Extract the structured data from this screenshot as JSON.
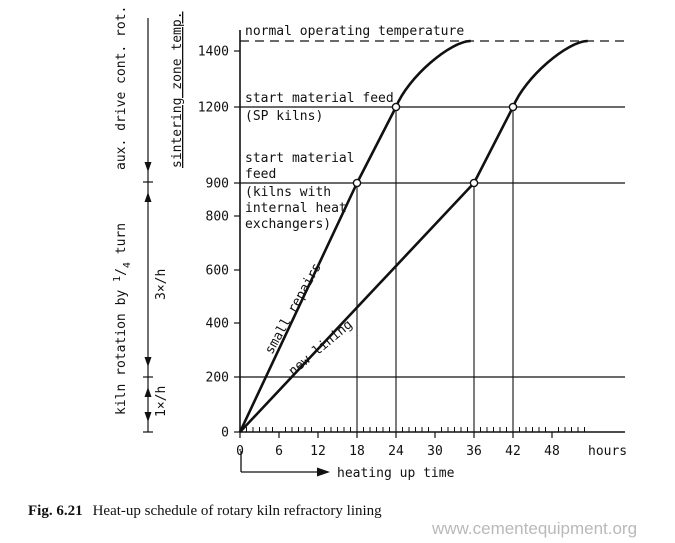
{
  "caption": {
    "label": "Fig. 6.21",
    "text": "Heat-up schedule of rotary kiln refractory lining"
  },
  "watermark": "www.cementequipment.org",
  "chart_data": {
    "type": "line",
    "xlabel": "heating up time",
    "x_unit": "hours",
    "xlim": [
      0,
      58
    ],
    "ylim": [
      0,
      1480
    ],
    "x_ticks": [
      0,
      6,
      12,
      18,
      24,
      30,
      36,
      42,
      48
    ],
    "y_ticks": [
      0,
      200,
      400,
      600,
      800,
      900,
      1200,
      1400
    ],
    "hlines": [
      200,
      900,
      1200,
      1440
    ],
    "dashed_hline": 1440,
    "markers": [
      {
        "x": 18,
        "y": 900
      },
      {
        "x": 24,
        "y": 1200
      },
      {
        "x": 36,
        "y": 900
      },
      {
        "x": 42,
        "y": 1200
      }
    ],
    "series": [
      {
        "name": "small repairs",
        "x": [
          0,
          18,
          24,
          30,
          33,
          35.5
        ],
        "y": [
          0,
          900,
          1200,
          1390,
          1435,
          1440
        ]
      },
      {
        "name": "new lining",
        "x": [
          0,
          36,
          42,
          48,
          51,
          53.5
        ],
        "y": [
          0,
          900,
          1200,
          1390,
          1435,
          1440
        ]
      }
    ],
    "annotations": [
      {
        "lines": [
          "normal operating temperature"
        ],
        "y": 1440
      },
      {
        "lines": [
          "start material feed",
          "(SP kilns)"
        ],
        "y": 1200
      },
      {
        "lines": [
          "start material",
          "feed",
          "(kilns with",
          "internal heat",
          "exchangers)"
        ],
        "y": 900
      }
    ],
    "side_labels": {
      "outer_top": "aux. drive cont. rot.",
      "outer_bottom": [
        "kiln rotation by ",
        "1",
        "/",
        "4",
        " turn"
      ],
      "inner_top": "sintering zone temp.",
      "inner_mid": "3×/h",
      "inner_low": "1×/h"
    }
  }
}
